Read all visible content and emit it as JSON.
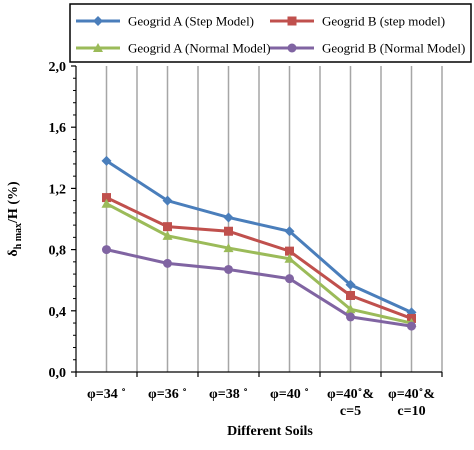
{
  "chart_data": {
    "type": "line",
    "categories": [
      "φ=34 ˚",
      "φ=36 ˚",
      "φ=38 ˚",
      "φ=40 ˚",
      "φ=40˚& c=5",
      "φ=40˚& c=10"
    ],
    "category_lines": [
      [
        "φ=34 ˚"
      ],
      [
        "φ=36 ˚"
      ],
      [
        "φ=38 ˚"
      ],
      [
        "φ=40 ˚"
      ],
      [
        "φ=40˚&",
        "c=5"
      ],
      [
        "φ=40˚&",
        "c=10"
      ]
    ],
    "series": [
      {
        "name": "Geogrid A (Step Model)",
        "color": "#4a7ebb",
        "marker": "diamond",
        "values": [
          1.38,
          1.12,
          1.01,
          0.92,
          0.57,
          0.39
        ]
      },
      {
        "name": "Geogrid B (step model)",
        "color": "#c0504d",
        "marker": "square",
        "values": [
          1.14,
          0.95,
          0.92,
          0.79,
          0.5,
          0.35
        ]
      },
      {
        "name": "Geogrid A (Normal Model)",
        "color": "#9bbb59",
        "marker": "triangle",
        "values": [
          1.1,
          0.89,
          0.81,
          0.74,
          0.41,
          0.32
        ]
      },
      {
        "name": "Geogrid B (Normal Model)",
        "color": "#8064a2",
        "marker": "circle",
        "values": [
          0.8,
          0.71,
          0.67,
          0.61,
          0.36,
          0.3
        ]
      }
    ],
    "ylim": [
      0,
      2.0
    ],
    "yticks": [
      "0,0",
      "0,4",
      "0,8",
      "1,2",
      "1,6",
      "2,0"
    ],
    "ytick_values": [
      0,
      0.4,
      0.8,
      1.2,
      1.6,
      2.0
    ],
    "ylabel_main": "δ",
    "ylabel_sub": "h max",
    "ylabel_tail": "/H (%)",
    "xlabel": "Different Soils",
    "grid": "vertical",
    "legend_position": "top"
  }
}
